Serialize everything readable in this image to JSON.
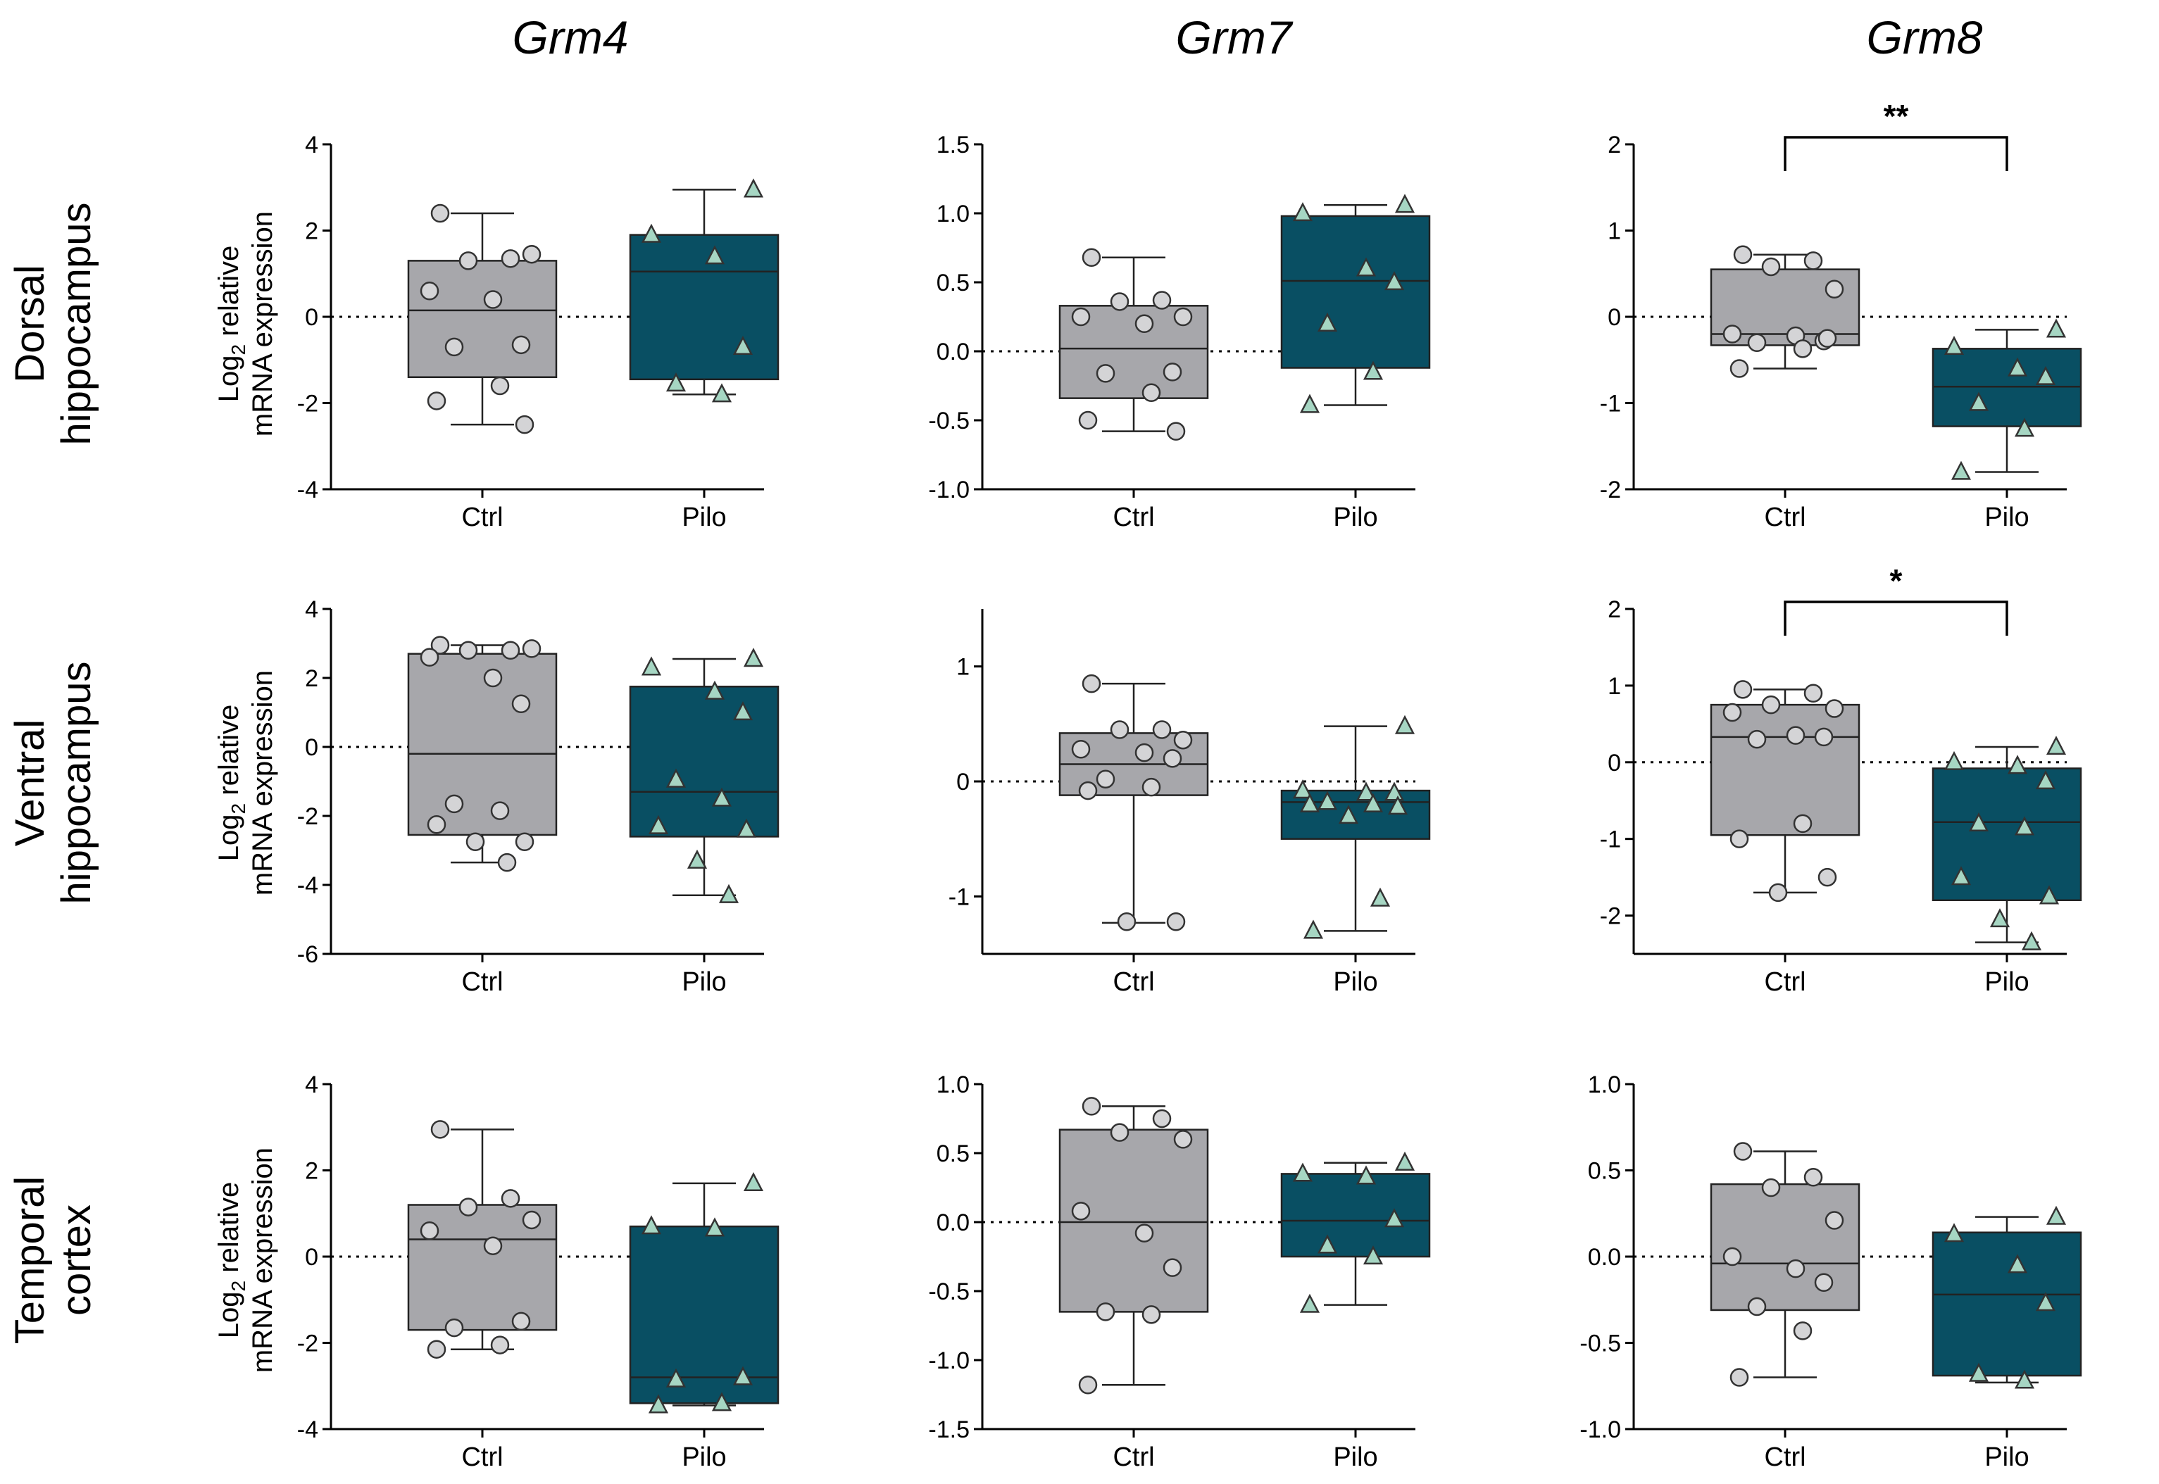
{
  "figure": {
    "row_labels": [
      [
        "Dorsal",
        "hippocampus"
      ],
      [
        "Ventral",
        "hippocampus"
      ],
      [
        "Temporal",
        "cortex"
      ]
    ],
    "gene_titles": [
      "Grm4",
      "Grm7",
      "Grm8"
    ],
    "ylabel_line1": "Log",
    "ylabel_sub": "2",
    "ylabel_line1_rest": " relative",
    "ylabel_line2": "mRNA expression",
    "colors": {
      "ctrl_box": "#a7a7ab",
      "pilo_box": "#094f63",
      "ctrl_marker": "#d4d4d6",
      "pilo_marker": "#a6d6c3",
      "outline": "#222222"
    }
  },
  "chart_data": [
    {
      "type": "box",
      "row": 0,
      "col": 0,
      "title": "Grm4",
      "region": "Dorsal hippocampus",
      "categories": [
        "Ctrl",
        "Pilo"
      ],
      "ylim": [
        -4,
        4
      ],
      "yticks": [
        -4,
        -2,
        0,
        2,
        4
      ],
      "ytick_labels": [
        "-4",
        "-2",
        "0",
        "2",
        "4"
      ],
      "ctrl": {
        "q1": -1.4,
        "median": 0.15,
        "q3": 1.3,
        "whisker_low": -2.5,
        "whisker_high": 2.4,
        "points": [
          2.4,
          1.35,
          1.3,
          1.45,
          0.6,
          0.4,
          -0.65,
          -0.7,
          -1.6,
          -1.95,
          -2.5
        ]
      },
      "pilo": {
        "q1": -1.45,
        "median": 1.05,
        "q3": 1.9,
        "whisker_low": -1.8,
        "whisker_high": 2.95,
        "points": [
          2.95,
          1.9,
          1.4,
          -0.7,
          -1.55,
          -1.8
        ]
      }
    },
    {
      "type": "box",
      "row": 0,
      "col": 1,
      "title": "Grm7",
      "region": "Dorsal hippocampus",
      "categories": [
        "Ctrl",
        "Pilo"
      ],
      "ylim": [
        -1,
        1.5
      ],
      "yticks": [
        -1,
        -0.5,
        0,
        0.5,
        1,
        1.5
      ],
      "ytick_labels": [
        "-1.0",
        "-0.5",
        "0.0",
        "0.5",
        "1.0",
        "1.5"
      ],
      "ctrl": {
        "q1": -0.34,
        "median": 0.02,
        "q3": 0.33,
        "whisker_low": -0.58,
        "whisker_high": 0.68,
        "points": [
          0.68,
          0.37,
          0.36,
          0.25,
          0.25,
          0.2,
          -0.15,
          -0.16,
          -0.3,
          -0.5,
          -0.58
        ]
      },
      "pilo": {
        "q1": -0.12,
        "median": 0.51,
        "q3": 0.98,
        "whisker_low": -0.39,
        "whisker_high": 1.06,
        "points": [
          1.06,
          1.0,
          0.6,
          0.5,
          0.2,
          -0.15,
          -0.39
        ]
      }
    },
    {
      "type": "box",
      "row": 0,
      "col": 2,
      "title": "Grm8",
      "region": "Dorsal hippocampus",
      "categories": [
        "Ctrl",
        "Pilo"
      ],
      "ylim": [
        -2,
        2
      ],
      "yticks": [
        -2,
        -1,
        0,
        1,
        2
      ],
      "ytick_labels": [
        "-2",
        "-1",
        "0",
        "1",
        "2"
      ],
      "significance": "**",
      "ctrl": {
        "q1": -0.33,
        "median": -0.2,
        "q3": 0.55,
        "whisker_low": -0.6,
        "whisker_high": 0.72,
        "points": [
          0.72,
          0.65,
          0.58,
          0.32,
          -0.2,
          -0.22,
          -0.28,
          -0.3,
          -0.37,
          -0.6,
          -0.25
        ]
      },
      "pilo": {
        "q1": -1.27,
        "median": -0.81,
        "q3": -0.37,
        "whisker_low": -1.8,
        "whisker_high": -0.15,
        "points": [
          -0.15,
          -0.35,
          -0.6,
          -0.7,
          -1.0,
          -1.3,
          -1.8
        ]
      }
    },
    {
      "type": "box",
      "row": 1,
      "col": 0,
      "title": "Grm4",
      "region": "Ventral hippocampus",
      "categories": [
        "Ctrl",
        "Pilo"
      ],
      "ylim": [
        -6,
        4
      ],
      "yticks": [
        -6,
        -4,
        -2,
        0,
        2,
        4
      ],
      "ytick_labels": [
        "-6",
        "-4",
        "-2",
        "0",
        "2",
        "4"
      ],
      "ctrl": {
        "q1": -2.55,
        "median": -0.2,
        "q3": 2.7,
        "whisker_low": -3.35,
        "whisker_high": 2.95,
        "points": [
          2.95,
          2.8,
          2.8,
          2.85,
          2.6,
          2.0,
          1.25,
          -1.65,
          -1.85,
          -2.25,
          -2.75,
          -2.75,
          -3.35
        ]
      },
      "pilo": {
        "q1": -2.6,
        "median": -1.3,
        "q3": 1.75,
        "whisker_low": -4.3,
        "whisker_high": 2.55,
        "points": [
          2.55,
          2.3,
          1.6,
          1.0,
          -0.95,
          -1.5,
          -2.3,
          -2.4,
          -3.3,
          -4.3
        ]
      }
    },
    {
      "type": "box",
      "row": 1,
      "col": 1,
      "title": "Grm7",
      "region": "Ventral hippocampus",
      "categories": [
        "Ctrl",
        "Pilo"
      ],
      "ylim": [
        -1.5,
        1.5
      ],
      "yticks": [
        -1,
        0,
        1
      ],
      "ytick_labels": [
        "-1",
        "0",
        "1"
      ],
      "ctrl": {
        "q1": -0.12,
        "median": 0.15,
        "q3": 0.42,
        "whisker_low": -1.23,
        "whisker_high": 0.85,
        "points": [
          0.85,
          0.45,
          0.45,
          0.36,
          0.28,
          0.25,
          0.2,
          0.02,
          -0.05,
          -0.08,
          -1.22,
          -1.22
        ]
      },
      "pilo": {
        "q1": -0.5,
        "median": -0.18,
        "q3": -0.08,
        "whisker_low": -1.3,
        "whisker_high": 0.48,
        "points": [
          0.48,
          -0.08,
          -0.1,
          -0.1,
          -0.18,
          -0.2,
          -0.2,
          -0.22,
          -0.3,
          -1.02,
          -1.3
        ]
      }
    },
    {
      "type": "box",
      "row": 1,
      "col": 2,
      "title": "Grm8",
      "region": "Ventral hippocampus",
      "categories": [
        "Ctrl",
        "Pilo"
      ],
      "ylim": [
        -2.5,
        2
      ],
      "yticks": [
        -2,
        -1,
        0,
        1,
        2
      ],
      "ytick_labels": [
        "-2",
        "-1",
        "0",
        "1",
        "2"
      ],
      "significance": "*",
      "ctrl": {
        "q1": -0.95,
        "median": 0.33,
        "q3": 0.75,
        "whisker_low": -1.7,
        "whisker_high": 0.95,
        "points": [
          0.95,
          0.9,
          0.75,
          0.7,
          0.65,
          0.35,
          0.33,
          0.3,
          -0.8,
          -1.0,
          -1.5,
          -1.7
        ]
      },
      "pilo": {
        "q1": -1.8,
        "median": -0.78,
        "q3": -0.08,
        "whisker_low": -2.35,
        "whisker_high": 0.2,
        "points": [
          0.2,
          0.0,
          -0.05,
          -0.25,
          -0.8,
          -0.85,
          -1.5,
          -1.75,
          -2.05,
          -2.35
        ]
      }
    },
    {
      "type": "box",
      "row": 2,
      "col": 0,
      "title": "Grm4",
      "region": "Temporal cortex",
      "categories": [
        "Ctrl",
        "Pilo"
      ],
      "ylim": [
        -4,
        4
      ],
      "yticks": [
        -4,
        -2,
        0,
        2,
        4
      ],
      "ytick_labels": [
        "-4",
        "-2",
        "0",
        "2",
        "4"
      ],
      "ctrl": {
        "q1": -1.7,
        "median": 0.4,
        "q3": 1.2,
        "whisker_low": -2.15,
        "whisker_high": 2.95,
        "points": [
          2.95,
          1.35,
          1.15,
          0.85,
          0.6,
          0.25,
          -1.5,
          -1.65,
          -2.05,
          -2.15
        ]
      },
      "pilo": {
        "q1": -3.4,
        "median": -2.8,
        "q3": 0.7,
        "whisker_low": -3.45,
        "whisker_high": 1.7,
        "points": [
          1.7,
          0.7,
          0.65,
          -2.8,
          -2.85,
          -3.4,
          -3.45
        ]
      }
    },
    {
      "type": "box",
      "row": 2,
      "col": 1,
      "title": "Grm7",
      "region": "Temporal cortex",
      "categories": [
        "Ctrl",
        "Pilo"
      ],
      "ylim": [
        -1.5,
        1
      ],
      "yticks": [
        -1.5,
        -1,
        -0.5,
        0,
        0.5,
        1
      ],
      "ytick_labels": [
        "-1.5",
        "-1.0",
        "-0.5",
        "0.0",
        "0.5",
        "1.0"
      ],
      "ctrl": {
        "q1": -0.65,
        "median": 0.0,
        "q3": 0.67,
        "whisker_low": -1.18,
        "whisker_high": 0.84,
        "points": [
          0.84,
          0.75,
          0.65,
          0.6,
          0.08,
          -0.08,
          -0.33,
          -0.65,
          -0.67,
          -1.18
        ]
      },
      "pilo": {
        "q1": -0.25,
        "median": 0.01,
        "q3": 0.35,
        "whisker_low": -0.6,
        "whisker_high": 0.43,
        "points": [
          0.43,
          0.35,
          0.33,
          0.02,
          -0.17,
          -0.25,
          -0.6
        ]
      }
    },
    {
      "type": "box",
      "row": 2,
      "col": 2,
      "title": "Grm8",
      "region": "Temporal cortex",
      "categories": [
        "Ctrl",
        "Pilo"
      ],
      "ylim": [
        -1,
        1
      ],
      "yticks": [
        -1,
        -0.5,
        0,
        0.5,
        1
      ],
      "ytick_labels": [
        "-1.0",
        "-0.5",
        "0.0",
        "0.5",
        "1.0"
      ],
      "ctrl": {
        "q1": -0.31,
        "median": -0.04,
        "q3": 0.42,
        "whisker_low": -0.7,
        "whisker_high": 0.61,
        "points": [
          0.61,
          0.46,
          0.4,
          0.21,
          0.0,
          -0.07,
          -0.15,
          -0.29,
          -0.43,
          -0.7
        ]
      },
      "pilo": {
        "q1": -0.69,
        "median": -0.22,
        "q3": 0.14,
        "whisker_low": -0.73,
        "whisker_high": 0.23,
        "points": [
          0.23,
          0.13,
          -0.05,
          -0.27,
          -0.68,
          -0.72
        ]
      }
    }
  ]
}
